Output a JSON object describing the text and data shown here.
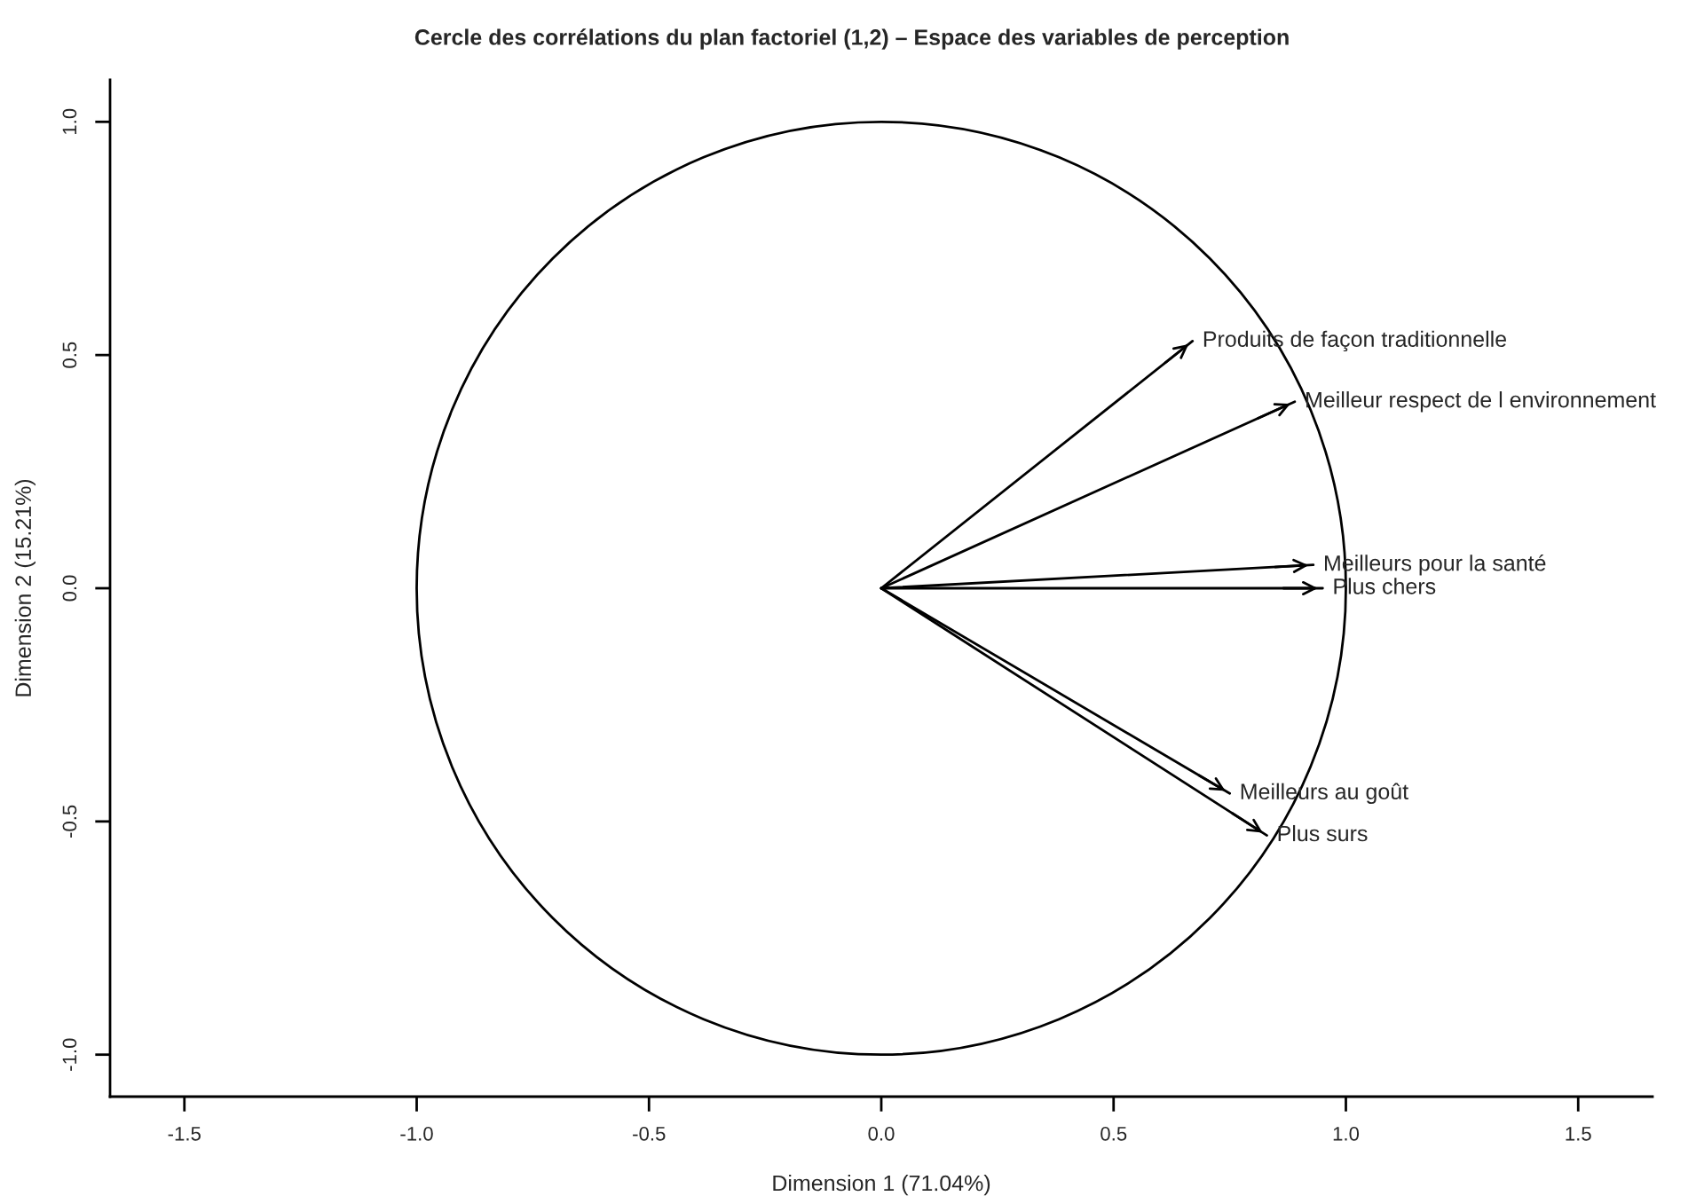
{
  "chart_data": {
    "type": "line",
    "title": "Cercle des corrélations du plan factoriel (1,2) – Espace des variables de perception",
    "xlabel": "Dimension 1 (71.04%)",
    "ylabel": "Dimension 2 (15.21%)",
    "xlim": [
      -1.66,
      1.66
    ],
    "ylim": [
      -1.09,
      1.09
    ],
    "xticks": [
      {
        "value": -1.5,
        "label": "-1.5"
      },
      {
        "value": -1.0,
        "label": "-1.0"
      },
      {
        "value": -0.5,
        "label": "-0.5"
      },
      {
        "value": 0.0,
        "label": "0.0"
      },
      {
        "value": 0.5,
        "label": "0.5"
      },
      {
        "value": 1.0,
        "label": "1.0"
      },
      {
        "value": 1.5,
        "label": "1.5"
      }
    ],
    "yticks": [
      {
        "value": -1.0,
        "label": "-1.0"
      },
      {
        "value": -0.5,
        "label": "-0.5"
      },
      {
        "value": 0.0,
        "label": "0.0"
      },
      {
        "value": 0.5,
        "label": "0.5"
      },
      {
        "value": 1.0,
        "label": "1.0"
      }
    ],
    "grid": false,
    "legend": "right",
    "marker": "none",
    "line_style": "solid",
    "series": [
      {
        "name": "Produits de façon traditionnelle",
        "color": "#000000",
        "x": [
          0,
          0.67
        ],
        "values": [
          0,
          0.53
        ]
      },
      {
        "name": "Meilleur respect de l environnement",
        "color": "#000000",
        "x": [
          0,
          0.89
        ],
        "values": [
          0,
          0.4
        ]
      },
      {
        "name": "Meilleurs pour la santé",
        "color": "#000000",
        "x": [
          0,
          0.93
        ],
        "values": [
          0,
          0.05
        ]
      },
      {
        "name": "Plus chers",
        "color": "#000000",
        "x": [
          0,
          0.95
        ],
        "values": [
          0,
          0.0
        ]
      },
      {
        "name": "Meilleurs au goût",
        "color": "#000000",
        "x": [
          0,
          0.75
        ],
        "values": [
          0,
          -0.44
        ]
      },
      {
        "name": "Plus surs",
        "color": "#000000",
        "x": [
          0,
          0.83
        ],
        "values": [
          0,
          -0.53
        ]
      }
    ]
  }
}
